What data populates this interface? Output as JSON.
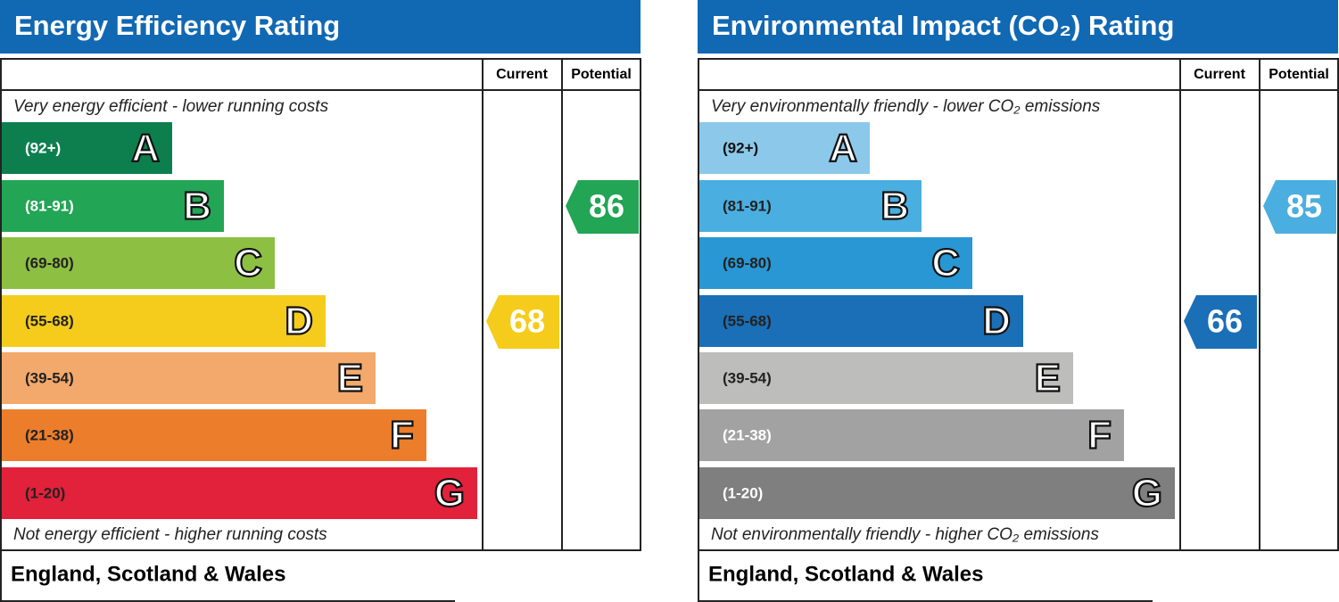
{
  "panels": [
    {
      "title": "Energy Efficiency Rating",
      "header_current": "Current",
      "header_potential": "Potential",
      "top_note": "Very energy efficient - lower running costs",
      "bottom_note": "Not energy efficient - higher running costs",
      "footer": "England, Scotland & Wales",
      "bands": [
        {
          "range": "(92+)",
          "letter": "A",
          "color": "#0d7f4f",
          "text_color": "#ffffff"
        },
        {
          "range": "(81-91)",
          "letter": "B",
          "color": "#22a555",
          "text_color": "#ffffff"
        },
        {
          "range": "(69-80)",
          "letter": "C",
          "color": "#8dbf42",
          "text_color": "#222222"
        },
        {
          "range": "(55-68)",
          "letter": "D",
          "color": "#f5cc1b",
          "text_color": "#222222"
        },
        {
          "range": "(39-54)",
          "letter": "E",
          "color": "#f2a96b",
          "text_color": "#222222"
        },
        {
          "range": "(21-38)",
          "letter": "F",
          "color": "#ec7d2a",
          "text_color": "#222222"
        },
        {
          "range": "(1-20)",
          "letter": "G",
          "color": "#e2213b",
          "text_color": "#222222"
        }
      ],
      "current": 68,
      "potential": 86
    },
    {
      "title": "Environmental Impact (CO₂) Rating",
      "header_current": "Current",
      "header_potential": "Potential",
      "top_note": "Very environmentally friendly - lower CO₂ emissions",
      "bottom_note": "Not environmentally friendly - higher CO₂ emissions",
      "footer": "England, Scotland & Wales",
      "bands": [
        {
          "range": "(92+)",
          "letter": "A",
          "color": "#8cc8ea",
          "text_color": "#111111"
        },
        {
          "range": "(81-91)",
          "letter": "B",
          "color": "#4aaee0",
          "text_color": "#222222"
        },
        {
          "range": "(69-80)",
          "letter": "C",
          "color": "#2897d3",
          "text_color": "#222222"
        },
        {
          "range": "(55-68)",
          "letter": "D",
          "color": "#1a6fb7",
          "text_color": "#222222"
        },
        {
          "range": "(39-54)",
          "letter": "E",
          "color": "#bdbdbb",
          "text_color": "#222222"
        },
        {
          "range": "(21-38)",
          "letter": "F",
          "color": "#a2a2a2",
          "text_color": "#ffffff"
        },
        {
          "range": "(1-20)",
          "letter": "G",
          "color": "#7f7f7f",
          "text_color": "#ffffff"
        }
      ],
      "current": 66,
      "potential": 85
    }
  ]
}
